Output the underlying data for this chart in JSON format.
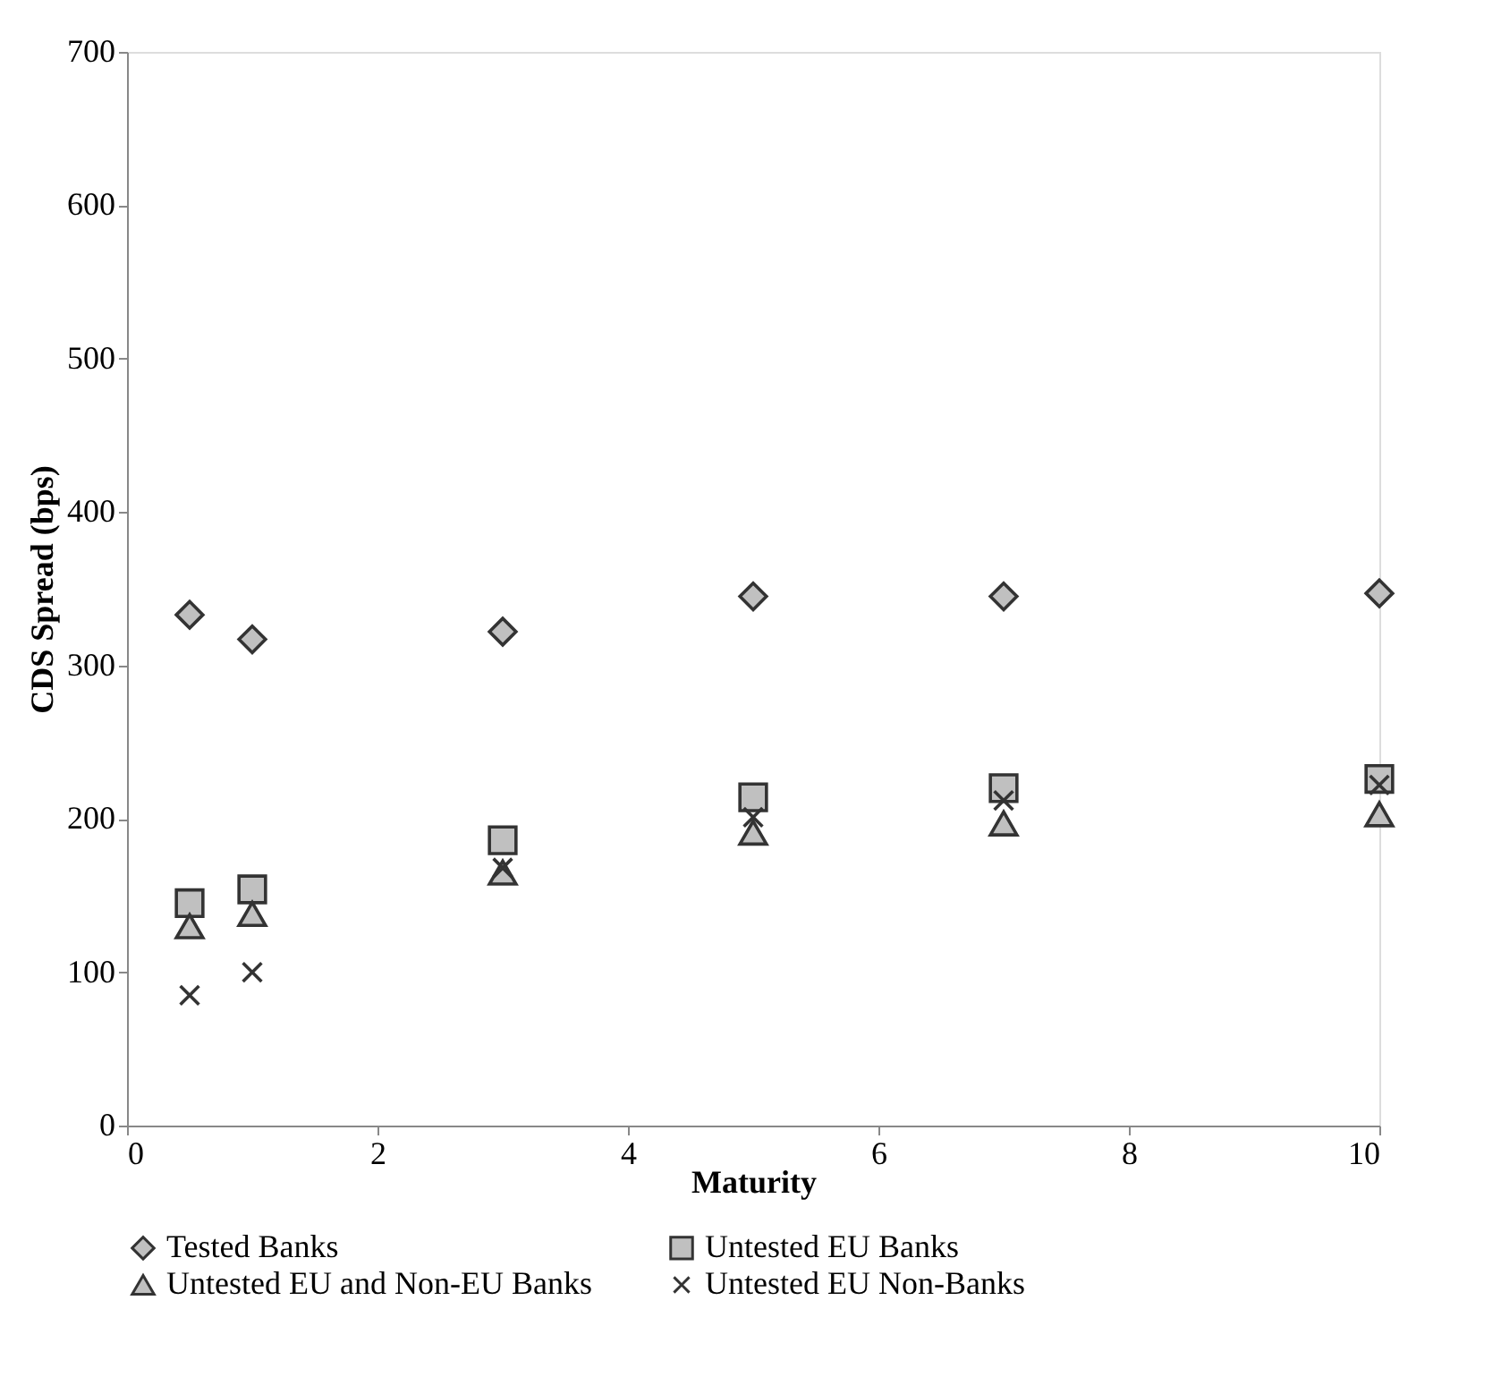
{
  "chart_data": {
    "type": "scatter",
    "xlabel": "Maturity",
    "ylabel": "CDS Spread (bps)",
    "x": [
      0.5,
      1,
      3,
      5,
      7,
      10
    ],
    "series": [
      {
        "name": "Tested Banks",
        "color": "#c0c0c0",
        "marker": "diamond",
        "values": [
          333,
          317,
          322,
          345,
          345,
          347
        ]
      },
      {
        "name": "Untested EU Banks",
        "color": "#c0c0c0",
        "marker": "square",
        "values": [
          145,
          154,
          186,
          214,
          220,
          226
        ]
      },
      {
        "name": "Untested EU and Non-EU Banks",
        "color": "#c0c0c0",
        "marker": "triangle",
        "values": [
          130,
          138,
          165,
          191,
          197,
          203
        ]
      },
      {
        "name": "Untested EU Non-Banks",
        "color": "#333333",
        "marker": "cross",
        "values": [
          85,
          100,
          168,
          201,
          212,
          222
        ]
      }
    ],
    "xlim": [
      0,
      10
    ],
    "xticks": [
      0,
      2,
      4,
      6,
      8,
      10
    ],
    "ylim": [
      0,
      700
    ],
    "yticks": [
      0,
      100,
      200,
      300,
      400,
      500,
      600,
      700
    ],
    "grid": false,
    "legend": "bottom"
  }
}
